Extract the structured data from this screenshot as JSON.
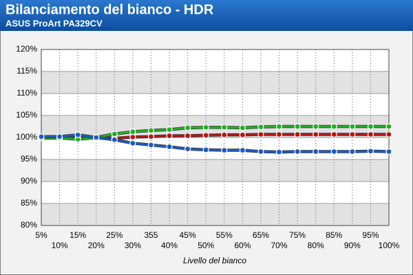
{
  "chart_data": {
    "type": "line",
    "title": "Bilanciamento del bianco - HDR",
    "subtitle": "ASUS ProArt PA329CV",
    "x_label": "Livello del bianco",
    "categories": [
      "5%",
      "10%",
      "15%",
      "20%",
      "25%",
      "30%",
      "355",
      "40%",
      "45%",
      "50%",
      "55%",
      "60%",
      "65%",
      "70%",
      "75%",
      "80%",
      "85%",
      "90%",
      "95%",
      "100%"
    ],
    "series": [
      {
        "color": "#b01818",
        "values": [
          99.9,
          99.9,
          99.9,
          100.0,
          99.8,
          100.1,
          100.2,
          100.4,
          100.4,
          100.5,
          100.6,
          100.6,
          100.7,
          100.7,
          100.7,
          100.7,
          100.7,
          100.7,
          100.7,
          100.7
        ]
      },
      {
        "color": "#22b022",
        "values": [
          99.9,
          99.9,
          99.6,
          100.0,
          100.8,
          101.3,
          101.6,
          101.8,
          102.2,
          102.3,
          102.3,
          102.2,
          102.4,
          102.5,
          102.5,
          102.5,
          102.5,
          102.5,
          102.5,
          102.5
        ]
      },
      {
        "color": "#1a5cc0",
        "values": [
          100.2,
          100.2,
          100.6,
          100.0,
          99.5,
          98.7,
          98.3,
          97.9,
          97.4,
          97.2,
          97.1,
          97.1,
          96.8,
          96.7,
          96.8,
          96.8,
          96.8,
          96.8,
          96.9,
          96.8
        ]
      }
    ],
    "ylim": [
      80,
      120
    ],
    "yticks": [
      {
        "value": 80,
        "label": "80%"
      },
      {
        "value": 85,
        "label": "85%"
      },
      {
        "value": 90,
        "label": "90%"
      },
      {
        "value": 95,
        "label": "95%"
      },
      {
        "value": 100,
        "label": "100%"
      },
      {
        "value": 105,
        "label": "105%"
      },
      {
        "value": 110,
        "label": "110%"
      },
      {
        "value": 115,
        "label": "115%"
      },
      {
        "value": 120,
        "label": "120%"
      }
    ],
    "grid": true
  }
}
